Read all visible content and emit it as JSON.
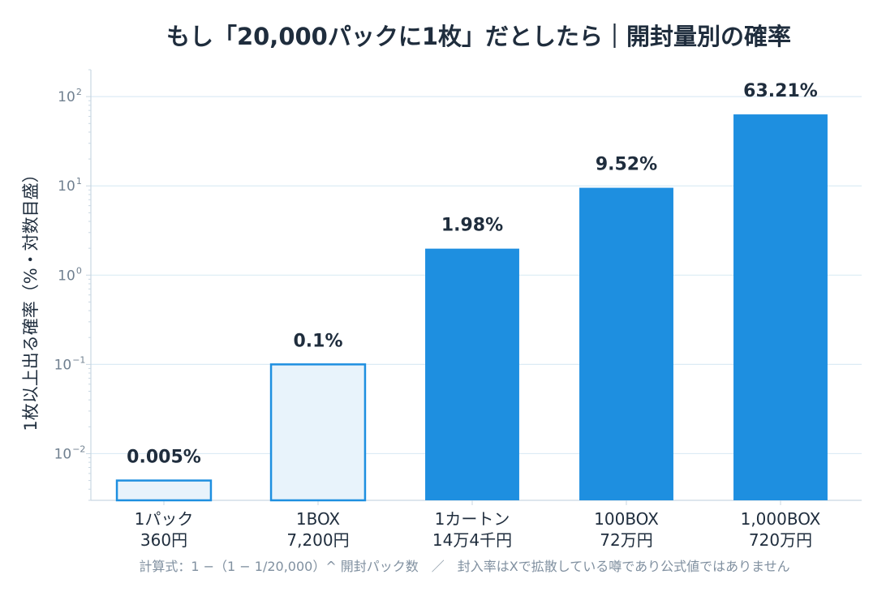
{
  "chart_data": {
    "type": "bar",
    "title": "もし「20,000パックに1枚」だとしたら｜開封量別の確率",
    "ylabel": "1枚以上出る確率（%・対数目盛）",
    "xlabel": "",
    "yscale": "log",
    "ylim": [
      0.003,
      200
    ],
    "grid": true,
    "categories": [
      [
        "1パック",
        "360円"
      ],
      [
        "1BOX",
        "7,200円"
      ],
      [
        "1カートン",
        "14万4千円"
      ],
      [
        "100BOX",
        "72万円"
      ],
      [
        "1,000BOX",
        "720万円"
      ]
    ],
    "values": [
      0.005,
      0.1,
      1.98,
      9.52,
      63.21
    ],
    "value_labels": [
      "0.005%",
      "0.1%",
      "1.98%",
      "9.52%",
      "63.21%"
    ],
    "bar_styles": [
      "outline",
      "outline",
      "filled",
      "filled",
      "filled"
    ],
    "yticks": [
      {
        "base": "10",
        "exp": "−2",
        "value": 0.01
      },
      {
        "base": "10",
        "exp": "−1",
        "value": 0.1
      },
      {
        "base": "10",
        "exp": "0",
        "value": 1
      },
      {
        "base": "10",
        "exp": "1",
        "value": 10
      },
      {
        "base": "10",
        "exp": "2",
        "value": 100
      }
    ],
    "footnote": "計算式：1 −（1 − 1/20,000）^ 開封パック数　／　封入率はXで拡散している噂であり公式値ではありません",
    "colors": {
      "bar": "#1e8fe0",
      "outline_fill": "#e8f3fb",
      "grid": "#dcebf5",
      "axis": "#c9d7e2",
      "label": "#1f2d3d",
      "tick": "#708090"
    }
  }
}
